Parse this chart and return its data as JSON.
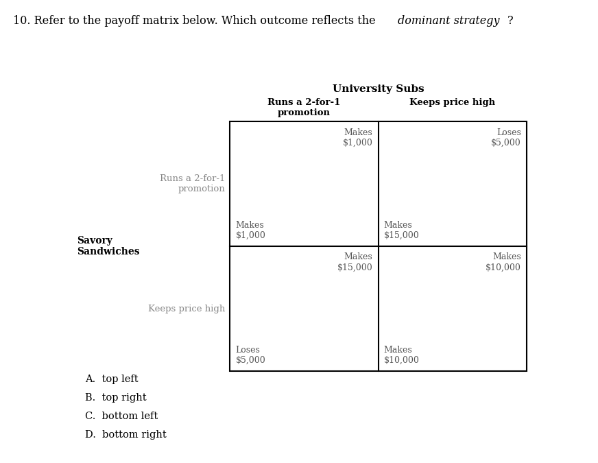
{
  "col_header": "University Subs",
  "col1_label": "Runs a 2-for-1\npromotion",
  "col2_label": "Keeps price high",
  "row_header": "Savory\nSandwiches",
  "row1_label": "Runs a 2-for-1\npromotion",
  "row2_label": "Keeps price high",
  "cell_tl_top_verb": "Makes",
  "cell_tl_top_val": "$1,000",
  "cell_tl_bot_verb": "Makes",
  "cell_tl_bot_val": "$1,000",
  "cell_tr_top_verb": "Loses",
  "cell_tr_top_val": "$5,000",
  "cell_tr_bot_verb": "Makes",
  "cell_tr_bot_val": "$15,000",
  "cell_bl_top_verb": "Makes",
  "cell_bl_top_val": "$15,000",
  "cell_bl_bot_verb": "Loses",
  "cell_bl_bot_val": "$5,000",
  "cell_br_top_verb": "Makes",
  "cell_br_top_val": "$10,000",
  "cell_br_bot_verb": "Makes",
  "cell_br_bot_val": "$10,000",
  "choices": [
    "A.  top left",
    "B.  top right",
    "C.  bottom left",
    "D.  bottom right"
  ],
  "label_color": "#888888",
  "cell_text_color": "#555555",
  "border_color": "#000000",
  "bg_color": "#ffffff"
}
